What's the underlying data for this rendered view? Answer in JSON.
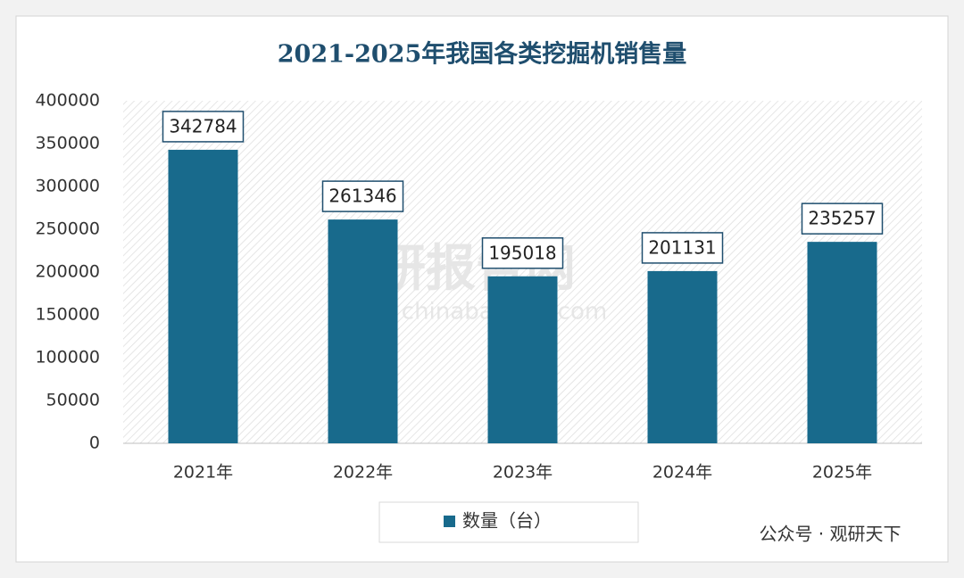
{
  "chart_data": {
    "type": "bar",
    "title": "2021-2025年我国各类挖掘机销售量",
    "categories": [
      "2021年",
      "2022年",
      "2023年",
      "2024年",
      "2025年"
    ],
    "series": [
      {
        "name": "数量（台）",
        "color": "#186a8c",
        "values": [
          342784,
          261346,
          195018,
          201131,
          235257
        ]
      }
    ],
    "ylim": [
      0,
      400000
    ],
    "yticks": [
      0,
      50000,
      100000,
      150000,
      200000,
      250000,
      300000,
      350000,
      400000
    ],
    "grid": false,
    "legend": "bottom",
    "annotations": [
      "观研报告网",
      "chinabaogao.com",
      "公众号 · 观研天下"
    ]
  }
}
